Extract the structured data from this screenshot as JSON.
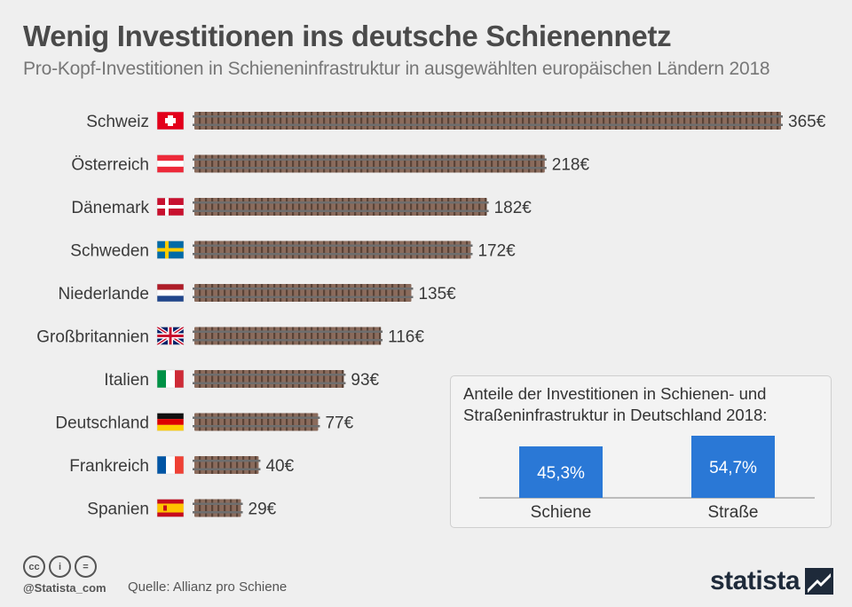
{
  "header": {
    "title": "Wenig Investitionen ins deutsche Schienennetz",
    "subtitle": "Pro-Kopf-Investitionen in Schieneninfrastruktur in ausgewählten europäischen Ländern 2018"
  },
  "colors": {
    "track": "#8a6b5c",
    "rail": "#6e6e6e",
    "bar_blue": "#2a78d6"
  },
  "chart_data": [
    {
      "type": "bar",
      "orientation": "horizontal",
      "categories": [
        "Schweiz",
        "Österreich",
        "Dänemark",
        "Schweden",
        "Niederlande",
        "Großbritannien",
        "Italien",
        "Deutschland",
        "Frankreich",
        "Spanien"
      ],
      "values": [
        365,
        218,
        182,
        172,
        135,
        116,
        93,
        77,
        40,
        29
      ],
      "value_labels": [
        "365€",
        "218€",
        "182€",
        "172€",
        "135€",
        "116€",
        "93€",
        "77€",
        "40€",
        "29€"
      ],
      "flags": [
        "switzerland-flag",
        "austria-flag",
        "denmark-flag",
        "sweden-flag",
        "netherlands-flag",
        "uk-flag",
        "italy-flag",
        "germany-flag",
        "france-flag",
        "spain-flag"
      ],
      "unit": "€",
      "xlim": [
        0,
        365
      ]
    },
    {
      "type": "bar",
      "title": "Anteile der Investitionen in Schienen- und Straßeninfrastruktur in Deutschland 2018:",
      "title_lines": [
        "Anteile der Investitionen in Schienen- und",
        "Straßeninfrastruktur in Deutschland 2018:"
      ],
      "categories": [
        "Schiene",
        "Straße"
      ],
      "values": [
        45.3,
        54.7
      ],
      "value_labels": [
        "45,3%",
        "54,7%"
      ],
      "unit": "%"
    }
  ],
  "footer": {
    "cc_icons": [
      "cc-icon",
      "by-icon",
      "nd-icon"
    ],
    "cc_labels": [
      "cc",
      "i",
      "="
    ],
    "handle": "@Statista_com",
    "source": "Quelle: Allianz pro Schiene",
    "logo_text": "statista"
  }
}
